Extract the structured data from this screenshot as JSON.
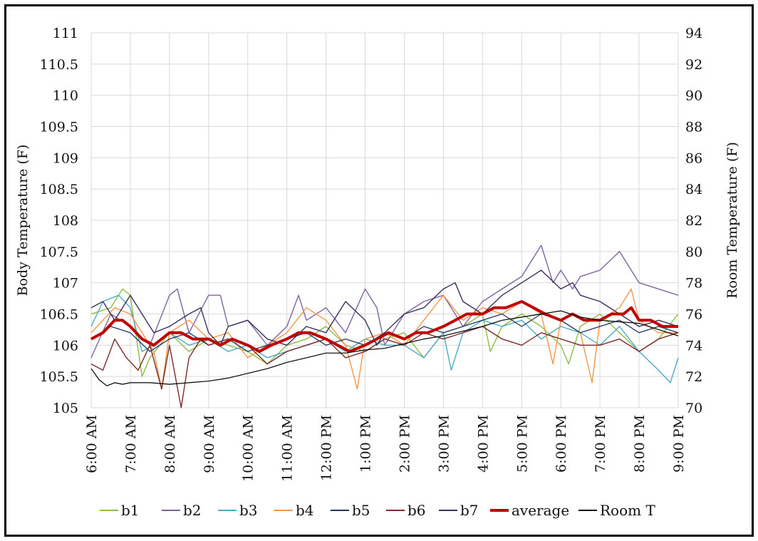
{
  "chart_data": {
    "type": "line",
    "title": "",
    "ylabel": "Body Temperature (F)",
    "y2label": "Room Temperature (F)",
    "ylim": [
      105,
      111
    ],
    "y2lim": [
      70,
      94
    ],
    "yticks": [
      "111",
      "110.5",
      "110",
      "109.5",
      "109",
      "108.5",
      "108",
      "107.5",
      "107",
      "106.5",
      "106",
      "105.5",
      "105"
    ],
    "y2ticks": [
      "94",
      "92",
      "90",
      "88",
      "86",
      "84",
      "82",
      "80",
      "78",
      "76",
      "74",
      "72",
      "70"
    ],
    "xlim": [
      6,
      21
    ],
    "xticks": [
      {
        "v": 6,
        "label": "6:00 AM"
      },
      {
        "v": 7,
        "label": "7:00 AM"
      },
      {
        "v": 8,
        "label": "8:00 AM"
      },
      {
        "v": 9,
        "label": "9:00 AM"
      },
      {
        "v": 10,
        "label": "10:00 AM"
      },
      {
        "v": 11,
        "label": "11:00 AM"
      },
      {
        "v": 12,
        "label": "12:00 PM"
      },
      {
        "v": 13,
        "label": "1:00 PM"
      },
      {
        "v": 14,
        "label": "2:00 PM"
      },
      {
        "v": 15,
        "label": "3:00 PM"
      },
      {
        "v": 16,
        "label": "4:00 PM"
      },
      {
        "v": 17,
        "label": "5:00 PM"
      },
      {
        "v": 18,
        "label": "6:00 PM"
      },
      {
        "v": 19,
        "label": "7:00 PM"
      },
      {
        "v": 20,
        "label": "8:00 PM"
      },
      {
        "v": 21,
        "label": "9:00 PM"
      }
    ],
    "grid": true,
    "legend_position": "bottom",
    "series": [
      {
        "name": "b1",
        "color": "#8fbc45",
        "axis": "left",
        "width": 1.4,
        "x": [
          6,
          6.5,
          6.8,
          7,
          7.3,
          7.5,
          8,
          8.5,
          9,
          9.5,
          10,
          10.5,
          11,
          11.5,
          12,
          12.5,
          13,
          13.5,
          14,
          14.5,
          15,
          15.5,
          16,
          16.2,
          16.5,
          17,
          17.5,
          18,
          18.2,
          18.5,
          19,
          19.5,
          20,
          20.5,
          21
        ],
        "y": [
          106.5,
          106.6,
          106.9,
          106.8,
          105.5,
          105.8,
          106.2,
          105.9,
          106.1,
          106.0,
          105.9,
          105.7,
          106.0,
          106.1,
          106.3,
          106.0,
          105.9,
          106.1,
          106.2,
          105.8,
          106.2,
          106.3,
          106.5,
          105.9,
          106.3,
          106.5,
          106.3,
          106.0,
          105.7,
          106.3,
          106.5,
          106.2,
          105.9,
          106.1,
          106.5
        ]
      },
      {
        "name": "b2",
        "color": "#8064a2",
        "axis": "left",
        "width": 1.4,
        "x": [
          6,
          6.5,
          7,
          7.5,
          8,
          8.2,
          8.5,
          9,
          9.3,
          9.5,
          10,
          10.5,
          11,
          11.3,
          11.5,
          12,
          12.5,
          13,
          13.3,
          13.5,
          14,
          14.5,
          15,
          15.5,
          16,
          16.5,
          17,
          17.5,
          17.8,
          18,
          18.3,
          18.5,
          19,
          19.5,
          19.7,
          20,
          20.5,
          21
        ],
        "y": [
          105.8,
          106.5,
          106.3,
          106.0,
          106.8,
          106.9,
          106.2,
          106.8,
          106.8,
          106.3,
          106.4,
          106.0,
          106.3,
          106.8,
          106.4,
          106.6,
          106.2,
          106.9,
          106.6,
          106.0,
          106.5,
          106.7,
          106.8,
          106.3,
          106.7,
          106.9,
          107.1,
          107.6,
          107.0,
          107.2,
          106.9,
          107.1,
          107.2,
          107.5,
          107.3,
          107.0,
          106.9,
          106.8
        ]
      },
      {
        "name": "b3",
        "color": "#4bacc6",
        "axis": "left",
        "width": 1.4,
        "x": [
          6,
          6.3,
          6.7,
          7,
          7.3,
          7.6,
          8,
          8.5,
          9,
          9.5,
          10,
          10.5,
          11,
          11.5,
          12,
          12.5,
          13,
          13.5,
          14,
          14.5,
          15,
          15.2,
          15.5,
          16,
          16.5,
          17,
          17.5,
          18,
          18.5,
          19,
          19.5,
          20,
          20.5,
          20.8,
          21
        ],
        "y": [
          106.3,
          106.7,
          106.8,
          106.6,
          105.9,
          106.0,
          106.2,
          106.0,
          106.1,
          105.9,
          106.0,
          105.8,
          105.9,
          106.0,
          106.1,
          105.9,
          106.1,
          106.0,
          106.0,
          105.8,
          106.2,
          105.6,
          106.2,
          106.4,
          106.3,
          106.4,
          106.1,
          106.3,
          106.2,
          106.0,
          106.3,
          105.9,
          105.6,
          105.4,
          105.8
        ]
      },
      {
        "name": "b4",
        "color": "#f79646",
        "axis": "left",
        "width": 1.4,
        "x": [
          6,
          6.3,
          6.6,
          7,
          7.3,
          7.6,
          7.8,
          8,
          8.5,
          9,
          9.5,
          10,
          10.5,
          11,
          11.5,
          12,
          12.5,
          12.8,
          13,
          13.5,
          14,
          14.5,
          15,
          15.5,
          16,
          16.5,
          17,
          17.5,
          17.8,
          18,
          18.5,
          18.8,
          19,
          19.5,
          19.8,
          20,
          20.5,
          21
        ],
        "y": [
          106.2,
          106.4,
          106.6,
          106.5,
          106.2,
          105.9,
          105.3,
          106.2,
          106.4,
          106.1,
          106.2,
          105.8,
          106.0,
          106.2,
          106.6,
          106.4,
          106.0,
          105.3,
          106.1,
          106.2,
          106.0,
          106.4,
          106.8,
          106.4,
          106.6,
          106.5,
          106.7,
          106.5,
          105.7,
          106.4,
          106.2,
          105.4,
          106.4,
          106.6,
          106.9,
          106.4,
          106.2,
          106.2
        ]
      },
      {
        "name": "b5",
        "color": "#1f3864",
        "axis": "left",
        "width": 1.3,
        "x": [
          6,
          6.5,
          7,
          7.5,
          8,
          8.5,
          9,
          9.5,
          10,
          10.5,
          11,
          11.5,
          12,
          12.5,
          13,
          13.5,
          14,
          14.5,
          15,
          15.5,
          16,
          16.5,
          17,
          17.5,
          18,
          18.5,
          19,
          19.5,
          20,
          20.5,
          21
        ],
        "y": [
          106.1,
          106.3,
          106.2,
          105.9,
          106.1,
          106.2,
          106.0,
          106.1,
          105.9,
          106.0,
          106.1,
          106.2,
          106.0,
          106.1,
          106.0,
          106.2,
          106.1,
          106.3,
          106.2,
          106.3,
          106.4,
          106.5,
          106.3,
          106.5,
          106.4,
          106.2,
          106.3,
          106.4,
          106.2,
          106.3,
          106.2
        ]
      },
      {
        "name": "b6",
        "color": "#7b2c2c",
        "axis": "left",
        "width": 1.4,
        "x": [
          6,
          6.3,
          6.6,
          6.9,
          7.2,
          7.5,
          7.8,
          8,
          8.3,
          8.5,
          8.8,
          9,
          9.5,
          10,
          10.5,
          11,
          11.5,
          12,
          12.5,
          13,
          13.5,
          14,
          14.5,
          15,
          15.5,
          16,
          16.5,
          17,
          17.5,
          18,
          18.5,
          19,
          19.5,
          20,
          20.5,
          21
        ],
        "y": [
          105.7,
          105.6,
          106.1,
          105.8,
          105.6,
          106.0,
          105.3,
          106.0,
          105.0,
          105.8,
          106.1,
          106.0,
          106.1,
          106.0,
          105.7,
          105.9,
          106.0,
          106.1,
          105.8,
          105.9,
          106.1,
          106.0,
          106.2,
          106.1,
          106.2,
          106.3,
          106.1,
          106.0,
          106.2,
          106.1,
          106.0,
          106.0,
          106.1,
          105.9,
          106.1,
          106.2
        ]
      },
      {
        "name": "b7",
        "color": "#3c2f5e",
        "axis": "left",
        "width": 1.4,
        "x": [
          6,
          6.3,
          6.6,
          7,
          7.3,
          7.6,
          8,
          8.5,
          8.8,
          9,
          9.3,
          9.5,
          10,
          10.5,
          11,
          11.5,
          12,
          12.5,
          13,
          13.3,
          13.5,
          14,
          14.5,
          15,
          15.3,
          15.5,
          16,
          16.5,
          17,
          17.5,
          18,
          18.3,
          18.5,
          19,
          19.5,
          20,
          20.5,
          21
        ],
        "y": [
          106.6,
          106.7,
          106.4,
          106.8,
          106.5,
          106.2,
          106.3,
          106.5,
          106.6,
          106.2,
          106.0,
          106.3,
          106.4,
          106.1,
          106.0,
          106.3,
          106.2,
          106.7,
          106.4,
          106.0,
          106.2,
          106.5,
          106.6,
          106.9,
          107.0,
          106.7,
          106.5,
          106.8,
          107.0,
          107.2,
          106.9,
          107.0,
          106.8,
          106.7,
          106.5,
          106.3,
          106.4,
          106.3
        ]
      },
      {
        "name": "average",
        "color": "#c00000",
        "axis": "left",
        "width": 4,
        "x": [
          6,
          6.3,
          6.6,
          6.8,
          7,
          7.3,
          7.6,
          8,
          8.3,
          8.6,
          9,
          9.3,
          9.6,
          10,
          10.3,
          10.6,
          11,
          11.3,
          11.6,
          12,
          12.3,
          12.6,
          13,
          13.3,
          13.6,
          14,
          14.3,
          14.6,
          15,
          15.3,
          15.6,
          16,
          16.3,
          16.6,
          17,
          17.3,
          17.6,
          18,
          18.3,
          18.6,
          19,
          19.3,
          19.6,
          19.8,
          20,
          20.3,
          20.6,
          21
        ],
        "y": [
          106.1,
          106.2,
          106.4,
          106.4,
          106.3,
          106.1,
          106.0,
          106.2,
          106.2,
          106.1,
          106.1,
          106.0,
          106.1,
          106.0,
          105.9,
          106.0,
          106.1,
          106.2,
          106.2,
          106.1,
          106.0,
          105.9,
          106.0,
          106.1,
          106.2,
          106.1,
          106.2,
          106.2,
          106.3,
          106.4,
          106.5,
          106.5,
          106.6,
          106.6,
          106.7,
          106.6,
          106.5,
          106.4,
          106.5,
          106.4,
          106.4,
          106.5,
          106.5,
          106.6,
          106.4,
          106.4,
          106.3,
          106.3
        ]
      },
      {
        "name": "Room T",
        "color": "#000000",
        "axis": "right",
        "width": 1.2,
        "x": [
          6,
          6.2,
          6.4,
          6.6,
          6.8,
          7,
          7.5,
          8,
          8.5,
          9,
          9.5,
          10,
          10.5,
          11,
          11.5,
          12,
          12.5,
          13,
          13.5,
          14,
          14.5,
          15,
          15.5,
          16,
          16.5,
          17,
          17.5,
          18,
          18.5,
          19,
          19.5,
          20,
          20.5,
          21
        ],
        "y": [
          72.5,
          71.8,
          71.4,
          71.6,
          71.5,
          71.6,
          71.6,
          71.5,
          71.6,
          71.7,
          71.9,
          72.2,
          72.5,
          72.9,
          73.2,
          73.5,
          73.5,
          73.7,
          73.8,
          74.1,
          74.4,
          74.6,
          74.9,
          75.2,
          75.6,
          75.8,
          76.0,
          76.2,
          75.8,
          75.6,
          75.5,
          75.4,
          75.0,
          74.6
        ]
      }
    ]
  }
}
